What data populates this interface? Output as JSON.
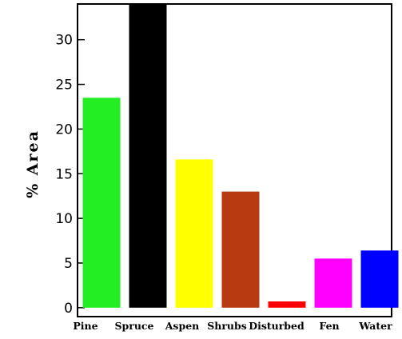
{
  "chart_data": {
    "type": "bar",
    "title": "",
    "xlabel": "",
    "ylabel": "% Area",
    "ylim": [
      -1,
      34
    ],
    "yticks": [
      0,
      5,
      10,
      15,
      20,
      25,
      30
    ],
    "grid": false,
    "categories": [
      "Pine",
      "Spruce",
      "Aspen",
      "Shrubs",
      "Disturbed",
      "Fen",
      "Water"
    ],
    "values": [
      23.5,
      34.5,
      16.6,
      13.0,
      0.7,
      5.5,
      6.4
    ],
    "colors": [
      "#22ee22",
      "#000000",
      "#ffff00",
      "#b83a10",
      "#ff0000",
      "#ff00ff",
      "#0000ff"
    ]
  }
}
